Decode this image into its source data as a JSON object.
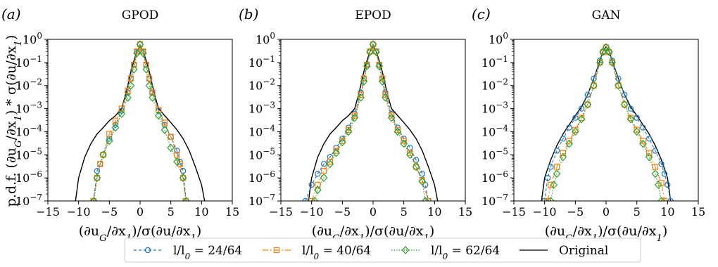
{
  "figure": {
    "ylabel": "p.d.f. (∂u_G/∂x_1) * σ(∂u/∂x_1)",
    "colors": {
      "l24": "#1f77b4",
      "l40": "#ff7f0e",
      "l62": "#2ca02c",
      "original": "#000000"
    }
  },
  "chart_data": [
    {
      "type": "line",
      "letter": "(a)",
      "title": "GPOD",
      "xlabel": "(∂u_G/∂x_1)/σ(∂u/∂x_1)",
      "ylabel": "p.d.f. (∂u_G/∂x_1) * σ(∂u/∂x_1)",
      "xlim": [
        -15,
        15
      ],
      "ylim": [
        1e-07,
        1
      ],
      "yscale": "log",
      "xticks": [
        -15,
        -10,
        -5,
        0,
        5,
        10,
        15
      ],
      "yticks": [
        "10^0",
        "10^-1",
        "10^-2",
        "10^-3",
        "10^-4",
        "10^-5",
        "10^-6",
        "10^-7"
      ],
      "series": [
        {
          "name": "l/l_0 = 24/64",
          "key": "l24",
          "marker": "circle",
          "x": [
            -7.6,
            -7.0,
            -6.5,
            -6.0,
            -5.0,
            -4.0,
            -3.0,
            -2.0,
            -1.5,
            -1.0,
            -0.5,
            0.0,
            0.5,
            1.0,
            1.5,
            2.0,
            3.0,
            4.0,
            5.0,
            6.0,
            6.5,
            7.0,
            7.5
          ],
          "y": [
            1e-07,
            2e-06,
            4e-06,
            1e-05,
            5e-05,
            0.0002,
            0.0008,
            0.005,
            0.02,
            0.08,
            0.3,
            0.6,
            0.3,
            0.08,
            0.02,
            0.005,
            0.0008,
            0.0002,
            6e-05,
            1.5e-05,
            5e-06,
            2e-06,
            1e-07
          ]
        },
        {
          "name": "l/l_0 = 40/64",
          "key": "l40",
          "marker": "square",
          "x": [
            -7.6,
            -7.0,
            -6.5,
            -6.0,
            -5.0,
            -4.0,
            -3.0,
            -2.0,
            -1.5,
            -1.0,
            -0.5,
            0.0,
            0.5,
            1.0,
            1.5,
            2.0,
            3.0,
            4.0,
            5.0,
            6.0,
            6.5,
            7.0,
            7.4
          ],
          "y": [
            1e-07,
            1e-06,
            4e-06,
            1e-05,
            8e-05,
            0.0003,
            0.001,
            0.006,
            0.02,
            0.08,
            0.3,
            0.62,
            0.3,
            0.08,
            0.02,
            0.005,
            0.0009,
            0.00025,
            6e-05,
            1e-05,
            4e-06,
            1e-06,
            1e-07
          ]
        },
        {
          "name": "l/l_0 = 62/64",
          "key": "l62",
          "marker": "diamond",
          "x": [
            -7.5,
            -7.0,
            -6.0,
            -5.0,
            -4.0,
            -3.0,
            -2.0,
            -1.5,
            -1.0,
            -0.5,
            0.0,
            0.5,
            1.0,
            1.5,
            2.0,
            3.0,
            4.0,
            5.0,
            6.0,
            7.0,
            7.5
          ],
          "y": [
            1e-07,
            1e-06,
            1e-05,
            4e-05,
            0.00015,
            0.0006,
            0.003,
            0.01,
            0.05,
            0.25,
            0.6,
            0.25,
            0.05,
            0.01,
            0.003,
            0.0005,
            0.00012,
            2e-05,
            5e-06,
            1e-06,
            1e-07
          ]
        },
        {
          "name": "Original",
          "key": "original",
          "marker": "none",
          "x": [
            -10.5,
            -10.0,
            -9.0,
            -8.0,
            -7.0,
            -6.0,
            -5.0,
            -4.0,
            -3.0,
            -2.5,
            -2.0,
            -1.5,
            -1.0,
            -0.5,
            0.0,
            0.5,
            1.0,
            1.5,
            2.0,
            2.5,
            3.0,
            4.0,
            5.0,
            6.0,
            7.0,
            8.0,
            9.0,
            10.0,
            10.5
          ],
          "y": [
            1e-07,
            1e-06,
            8e-06,
            3e-05,
            8e-05,
            0.00015,
            0.0003,
            0.0005,
            0.001,
            0.003,
            0.01,
            0.04,
            0.12,
            0.3,
            0.5,
            0.3,
            0.12,
            0.04,
            0.01,
            0.003,
            0.001,
            0.0005,
            0.00025,
            0.00012,
            5e-05,
            1.5e-05,
            3e-06,
            5e-07,
            1e-07
          ]
        }
      ]
    },
    {
      "type": "line",
      "letter": "(b)",
      "title": "EPOD",
      "xlabel": "(∂u_G/∂x_1)/σ(∂u/∂x_1)",
      "xlim": [
        -15,
        15
      ],
      "ylim": [
        1e-07,
        1
      ],
      "yscale": "log",
      "xticks": [
        -15,
        -10,
        -5,
        0,
        5,
        10,
        15
      ],
      "yticks": [
        "10^0",
        "10^-1",
        "10^-2",
        "10^-3",
        "10^-4",
        "10^-5",
        "10^-6",
        "10^-7"
      ],
      "series": [
        {
          "name": "l/l_0 = 24/64",
          "key": "l24",
          "marker": "circle",
          "x": [
            -11.0,
            -10.0,
            -9.0,
            -8.0,
            -7.0,
            -6.0,
            -5.0,
            -4.0,
            -3.0,
            -2.0,
            -1.5,
            -1.0,
            -0.5,
            0.0,
            0.5,
            1.0,
            1.5,
            2.0,
            3.0,
            4.0,
            5.0,
            6.0,
            7.0,
            8.0,
            8.5,
            9.0
          ],
          "y": [
            1e-07,
            5e-07,
            1.5e-06,
            4e-06,
            8e-06,
            2e-05,
            5e-05,
            0.00015,
            0.0006,
            0.005,
            0.02,
            0.08,
            0.3,
            0.62,
            0.3,
            0.08,
            0.02,
            0.005,
            0.0006,
            0.00015,
            5e-05,
            2e-05,
            6e-06,
            1.5e-06,
            5e-07,
            1e-07
          ]
        },
        {
          "name": "l/l_0 = 40/64",
          "key": "l40",
          "marker": "square",
          "x": [
            -10.0,
            -9.0,
            -8.0,
            -7.0,
            -6.0,
            -5.0,
            -4.0,
            -3.0,
            -2.0,
            -1.5,
            -1.0,
            -0.5,
            0.0,
            0.5,
            1.0,
            1.5,
            2.0,
            3.0,
            4.0,
            5.0,
            6.0,
            7.0,
            8.0,
            9.0
          ],
          "y": [
            1e-07,
            5e-07,
            2e-06,
            5e-06,
            1.5e-05,
            4e-05,
            0.00012,
            0.0005,
            0.004,
            0.02,
            0.08,
            0.3,
            0.6,
            0.3,
            0.08,
            0.02,
            0.004,
            0.0005,
            0.00012,
            4e-05,
            1.2e-05,
            3e-06,
            8e-07,
            1e-07
          ]
        },
        {
          "name": "l/l_0 = 62/64",
          "key": "l62",
          "marker": "diamond",
          "x": [
            -9.5,
            -9.0,
            -8.0,
            -7.0,
            -6.0,
            -5.0,
            -4.0,
            -3.0,
            -2.0,
            -1.5,
            -1.0,
            -0.5,
            0.0,
            0.5,
            1.0,
            1.5,
            2.0,
            3.0,
            4.0,
            5.0,
            6.0,
            7.0,
            8.0,
            8.5
          ],
          "y": [
            1e-07,
            3e-07,
            1e-06,
            4e-06,
            1.2e-05,
            3.5e-05,
            0.0001,
            0.0004,
            0.003,
            0.015,
            0.07,
            0.28,
            0.6,
            0.28,
            0.07,
            0.015,
            0.003,
            0.0004,
            0.0001,
            3e-05,
            1e-05,
            3e-06,
            7e-07,
            1e-07
          ]
        },
        {
          "name": "Original",
          "key": "original",
          "marker": "none",
          "x": [
            -10.5,
            -10.0,
            -9.0,
            -8.0,
            -7.0,
            -6.0,
            -5.0,
            -4.0,
            -3.0,
            -2.5,
            -2.0,
            -1.5,
            -1.0,
            -0.5,
            0.0,
            0.5,
            1.0,
            1.5,
            2.0,
            2.5,
            3.0,
            4.0,
            5.0,
            6.0,
            7.0,
            8.0,
            9.0,
            10.0,
            10.5
          ],
          "y": [
            1e-07,
            1e-06,
            8e-06,
            3e-05,
            8e-05,
            0.00015,
            0.0003,
            0.0005,
            0.001,
            0.003,
            0.01,
            0.04,
            0.12,
            0.3,
            0.5,
            0.3,
            0.12,
            0.04,
            0.01,
            0.003,
            0.001,
            0.0005,
            0.00025,
            0.00012,
            5e-05,
            1.5e-05,
            3e-06,
            5e-07,
            1e-07
          ]
        }
      ]
    },
    {
      "type": "line",
      "letter": "(c)",
      "title": "GAN",
      "xlabel": "(∂u_G/∂x_1)/σ(∂u/∂x_1)",
      "xlim": [
        -15,
        15
      ],
      "ylim": [
        1e-07,
        1
      ],
      "yscale": "log",
      "xticks": [
        -15,
        -10,
        -5,
        0,
        5,
        10,
        15
      ],
      "yticks": [
        "10^0",
        "10^-1",
        "10^-2",
        "10^-3",
        "10^-4",
        "10^-5",
        "10^-6",
        "10^-7"
      ],
      "series": [
        {
          "name": "l/l_0 = 24/64",
          "key": "l24",
          "marker": "circle",
          "x": [
            -10.0,
            -9.5,
            -9.0,
            -8.0,
            -7.0,
            -6.0,
            -5.0,
            -4.0,
            -3.0,
            -2.0,
            -1.0,
            -0.5,
            0.0,
            0.5,
            1.0,
            2.0,
            3.0,
            4.0,
            5.0,
            6.0,
            7.0,
            8.0,
            9.0,
            9.5,
            10.0,
            10.5
          ],
          "y": [
            1e-07,
            1e-06,
            3e-06,
            1.5e-05,
            5e-05,
            0.00015,
            0.0004,
            0.001,
            0.004,
            0.02,
            0.12,
            0.3,
            0.45,
            0.3,
            0.12,
            0.02,
            0.004,
            0.001,
            0.0004,
            0.00015,
            5e-05,
            1.5e-05,
            4e-06,
            1.5e-06,
            5e-07,
            1e-07
          ]
        },
        {
          "name": "l/l_0 = 40/64",
          "key": "l40",
          "marker": "square",
          "x": [
            -9.5,
            -9.0,
            -8.0,
            -7.0,
            -6.0,
            -5.0,
            -4.0,
            -3.0,
            -2.0,
            -1.0,
            -0.5,
            0.0,
            0.5,
            1.0,
            2.0,
            3.0,
            4.0,
            5.0,
            6.0,
            7.0,
            8.0,
            9.0,
            9.5
          ],
          "y": [
            1e-07,
            5e-07,
            3e-06,
            1.2e-05,
            4e-05,
            0.00012,
            0.0004,
            0.0015,
            0.01,
            0.1,
            0.28,
            0.45,
            0.28,
            0.1,
            0.01,
            0.0015,
            0.0004,
            0.00012,
            4e-05,
            1.2e-05,
            3e-06,
            6e-07,
            1e-07
          ]
        },
        {
          "name": "l/l_0 = 62/64",
          "key": "l62",
          "marker": "diamond",
          "x": [
            -9.0,
            -8.5,
            -8.0,
            -7.0,
            -6.0,
            -5.0,
            -4.0,
            -3.0,
            -2.0,
            -1.0,
            -0.5,
            0.0,
            0.5,
            1.0,
            2.0,
            3.0,
            4.0,
            5.0,
            6.0,
            7.0,
            8.0,
            8.5,
            9.0
          ],
          "y": [
            1e-07,
            5e-07,
            1.5e-06,
            8e-06,
            3e-05,
            0.0001,
            0.00035,
            0.0015,
            0.01,
            0.1,
            0.28,
            0.45,
            0.28,
            0.1,
            0.01,
            0.0015,
            0.00035,
            0.0001,
            3e-05,
            8e-06,
            1.5e-06,
            5e-07,
            1e-07
          ]
        },
        {
          "name": "Original",
          "key": "original",
          "marker": "none",
          "x": [
            -10.5,
            -10.0,
            -9.5,
            -9.0,
            -8.0,
            -7.0,
            -6.0,
            -5.0,
            -4.0,
            -3.0,
            -2.0,
            -1.0,
            -0.5,
            0.0,
            0.5,
            1.0,
            2.0,
            3.0,
            4.0,
            5.0,
            6.0,
            7.0,
            8.0,
            9.0,
            9.5,
            10.0,
            10.5
          ],
          "y": [
            1e-07,
            1e-06,
            2.5e-06,
            6e-06,
            2.5e-05,
            8e-05,
            0.0002,
            0.0005,
            0.0012,
            0.004,
            0.02,
            0.12,
            0.3,
            0.48,
            0.3,
            0.12,
            0.02,
            0.004,
            0.0012,
            0.0005,
            0.0002,
            8e-05,
            2.5e-05,
            6e-06,
            2.5e-06,
            1e-06,
            1e-07
          ]
        }
      ]
    }
  ],
  "legend": [
    {
      "label": "l/l_0 = 24/64",
      "key": "l24",
      "marker": "circle",
      "dash": "4,3"
    },
    {
      "label": "l/l_0 = 40/64",
      "key": "l40",
      "marker": "square",
      "dash": "8,3,2,3"
    },
    {
      "label": "l/l_0 = 62/64",
      "key": "l62",
      "marker": "diamond",
      "dash": "1.5,2"
    },
    {
      "label": "Original",
      "key": "original",
      "marker": "none",
      "dash": ""
    }
  ]
}
